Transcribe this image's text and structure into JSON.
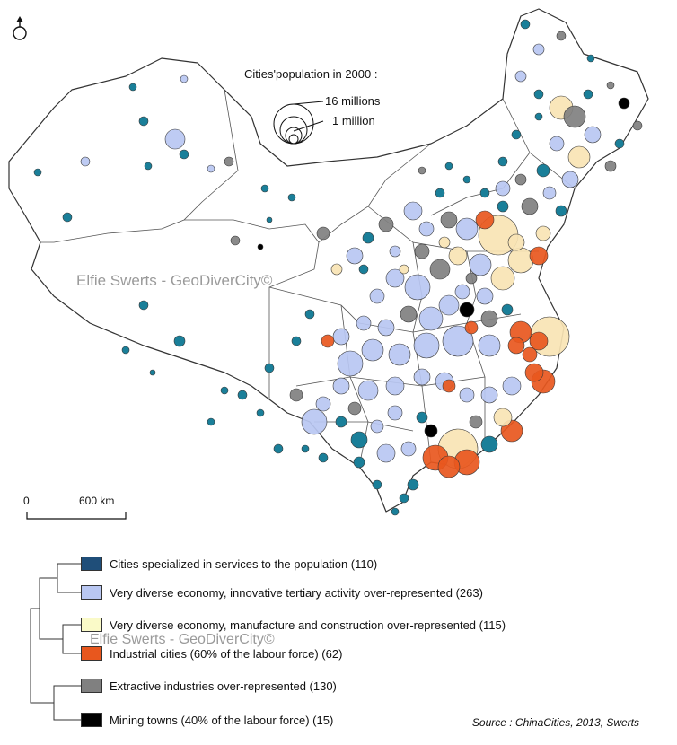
{
  "map": {
    "watermark": "Elfie Swerts - GeoDiverCity©",
    "scale": {
      "zero": "0",
      "distance": "600 km"
    },
    "population_legend": {
      "title": "Cities'population in 2000 :",
      "large": "16 millions",
      "small": "1 million"
    }
  },
  "legend": {
    "watermark": "Elfie Swerts - GeoDiverCity©",
    "items": [
      {
        "label": "Cities specialized in services to the population (110)",
        "color": "#1f4e79"
      },
      {
        "label": "Very diverse economy, innovative tertiary activity over-represented (263)",
        "color": "#b9c7f2"
      },
      {
        "label": "Very diverse economy, manufacture and construction over-represented (115)",
        "color": "#fafac8"
      },
      {
        "label": "Industrial cities (60% of the labour force) (62)",
        "color": "#e8571e"
      },
      {
        "label": "Extractive industries over-represented (130)",
        "color": "#808080"
      },
      {
        "label": "Mining towns (40% of the labour force) (15)",
        "color": "#000000"
      }
    ]
  },
  "source": "Source : ChinaCities, 2013, Swerts",
  "palette": {
    "services_dot": "#1a7f99",
    "diverse_tertiary": "#b9c7f2",
    "diverse_manufacture": "#f8e4b4",
    "industrial": "#e8571e",
    "extractive": "#808080",
    "mining": "#000000"
  }
}
